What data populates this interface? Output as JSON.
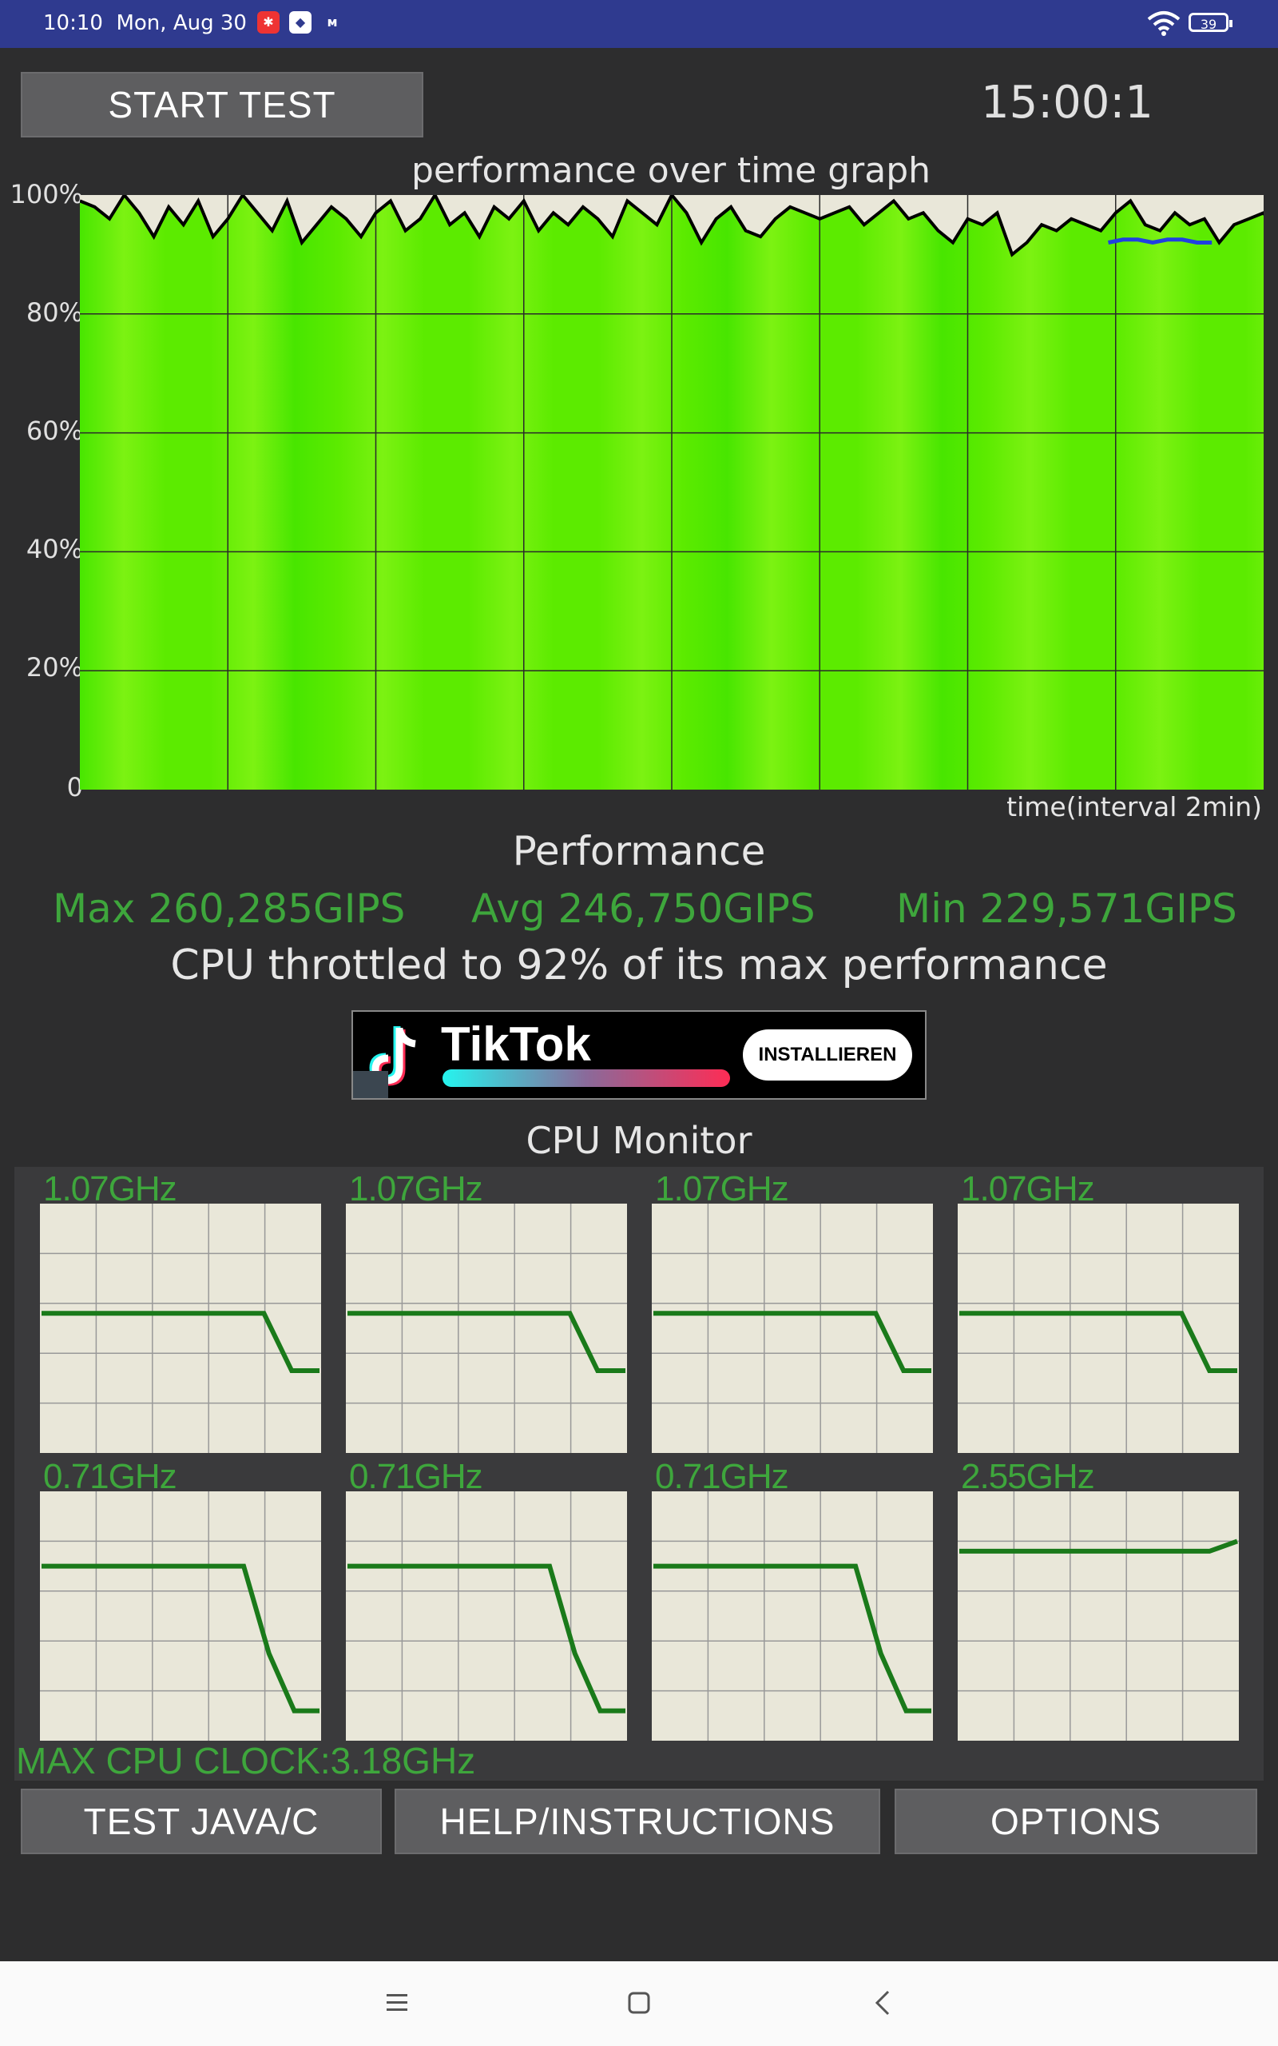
{
  "status_bar": {
    "time": "10:10",
    "date": "Mon, Aug 30",
    "battery": "39",
    "icons": [
      "ladybug-app-icon",
      "shield-app-icon",
      "messenger-app-icon",
      "wifi-icon",
      "battery-icon"
    ]
  },
  "header": {
    "start_button": "START TEST",
    "timer": "15:00:1"
  },
  "graph": {
    "title": "performance over time graph",
    "xlabel": "time(interval 2min)"
  },
  "chart_data": {
    "type": "area",
    "title": "performance over time graph",
    "xlabel": "time(interval 2min)",
    "ylabel": "",
    "y_ticks": [
      "100%",
      "80%",
      "60%",
      "40%",
      "20%",
      "0"
    ],
    "ylim": [
      0,
      100
    ],
    "grid": true,
    "x_start": 0,
    "x_step": 0.2,
    "xlim": [
      0,
      16
    ],
    "series": [
      {
        "type": "area",
        "fill_color": "#66ee00",
        "line_color": "#000000",
        "values": [
          99,
          98,
          96,
          100,
          97,
          93,
          98,
          95,
          99,
          93,
          96,
          100,
          97,
          94,
          99,
          92,
          95,
          98,
          96,
          93,
          97,
          99,
          94,
          96,
          100,
          95,
          97,
          93,
          98,
          96,
          99,
          94,
          97,
          95,
          98,
          96,
          93,
          99,
          97,
          95,
          100,
          97,
          92,
          96,
          98,
          94,
          93,
          96,
          98,
          97,
          96,
          97,
          98,
          95,
          97,
          99,
          96,
          97,
          94,
          92,
          96,
          95,
          97,
          90,
          92,
          95,
          94,
          96,
          95,
          94,
          97,
          99,
          95,
          94,
          97,
          95,
          96,
          92,
          95,
          96,
          97,
          93,
          91,
          94,
          92,
          90,
          93,
          96,
          95,
          94,
          93,
          96,
          98,
          97,
          94,
          96,
          95,
          92,
          94,
          93,
          95,
          96,
          90,
          88,
          95,
          97,
          94,
          90,
          93,
          95,
          92,
          89,
          92,
          95,
          96,
          94,
          97,
          95,
          99,
          96,
          94,
          92,
          95,
          93,
          92,
          95,
          94,
          93,
          95,
          96,
          93,
          94,
          92,
          94,
          96,
          98,
          95,
          99,
          96,
          93,
          94,
          95,
          93,
          92,
          96,
          95,
          94,
          97,
          96,
          93,
          92,
          94,
          93,
          95,
          97,
          95,
          91,
          92,
          95,
          96,
          93,
          95,
          96,
          94,
          92,
          92,
          93,
          93,
          92,
          90,
          91,
          92,
          93,
          93,
          92,
          94
        ]
      },
      {
        "type": "line",
        "line_color": "#2040e0",
        "x_start": 13.9,
        "values": [
          92,
          92.5,
          92.5,
          92,
          92.5,
          92.5,
          92,
          92
        ]
      }
    ]
  },
  "performance": {
    "title": "Performance",
    "max": "Max 260,285GIPS",
    "avg": "Avg 246,750GIPS",
    "min": "Min 229,571GIPS",
    "throttle_text": "CPU throttled to 92% of its max performance"
  },
  "ad": {
    "brand": "TikTok",
    "install_label": "INSTALLIEREN"
  },
  "cpu_monitor": {
    "title": "CPU Monitor",
    "line_color": "#1a7a1a",
    "cores": [
      {
        "freq": "1.07GHz",
        "level": [
          0.56,
          0.56,
          0.56,
          0.56,
          0.56,
          0.56,
          0.56,
          0.56,
          0.56,
          0.33,
          0.33
        ]
      },
      {
        "freq": "1.07GHz",
        "level": [
          0.56,
          0.56,
          0.56,
          0.56,
          0.56,
          0.56,
          0.56,
          0.56,
          0.56,
          0.33,
          0.33
        ]
      },
      {
        "freq": "1.07GHz",
        "level": [
          0.56,
          0.56,
          0.56,
          0.56,
          0.56,
          0.56,
          0.56,
          0.56,
          0.56,
          0.33,
          0.33
        ]
      },
      {
        "freq": "1.07GHz",
        "level": [
          0.56,
          0.56,
          0.56,
          0.56,
          0.56,
          0.56,
          0.56,
          0.56,
          0.56,
          0.33,
          0.33
        ]
      },
      {
        "freq": "0.71GHz",
        "level": [
          0.7,
          0.7,
          0.7,
          0.7,
          0.7,
          0.7,
          0.7,
          0.7,
          0.7,
          0.35,
          0.12,
          0.12
        ]
      },
      {
        "freq": "0.71GHz",
        "level": [
          0.7,
          0.7,
          0.7,
          0.7,
          0.7,
          0.7,
          0.7,
          0.7,
          0.7,
          0.35,
          0.12,
          0.12
        ]
      },
      {
        "freq": "0.71GHz",
        "level": [
          0.7,
          0.7,
          0.7,
          0.7,
          0.7,
          0.7,
          0.7,
          0.7,
          0.7,
          0.35,
          0.12,
          0.12
        ]
      },
      {
        "freq": "2.55GHz",
        "level": [
          0.76,
          0.76,
          0.76,
          0.76,
          0.76,
          0.76,
          0.76,
          0.76,
          0.76,
          0.76,
          0.8
        ]
      }
    ],
    "max_cpu_clock": "MAX CPU CLOCK:3.18GHz"
  },
  "footer_buttons": {
    "test_java": "TEST JAVA/C",
    "help": "HELP/INSTRUCTIONS",
    "options": "OPTIONS"
  },
  "nav_bar": {
    "icons": [
      "recents-icon",
      "home-icon",
      "back-icon"
    ]
  }
}
